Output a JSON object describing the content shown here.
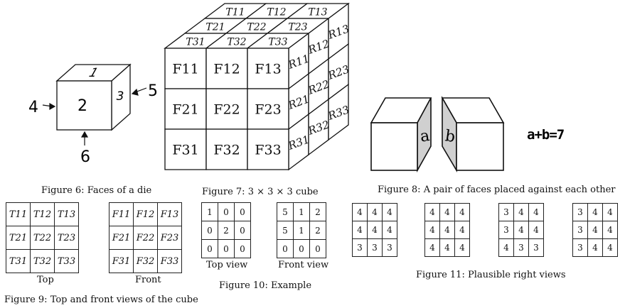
{
  "die": {
    "top": "1",
    "front": "2",
    "right": "3",
    "left_arrow": "4",
    "right_arrow": "5",
    "bottom_arrow": "6"
  },
  "cube": {
    "front_labels": [
      "F11",
      "F12",
      "F13",
      "F21",
      "F22",
      "F23",
      "F31",
      "F32",
      "F33"
    ],
    "top_labels": [
      "T11",
      "T12",
      "T13",
      "T21",
      "T22",
      "T23",
      "T31",
      "T32",
      "T33"
    ],
    "right_labels": [
      "R11",
      "R12",
      "R13",
      "R21",
      "R22",
      "R23",
      "R31",
      "R32",
      "R33"
    ]
  },
  "pair": {
    "face_a": "a",
    "face_b": "b",
    "equation": "a+b=7"
  },
  "captions": {
    "fig6": "Figure 6: Faces of a die",
    "fig7": "Figure 7: 3 × 3 × 3 cube",
    "fig8": "Figure 8: A pair of faces placed against each other",
    "fig9": "Figure 9: Top and front views of the cube",
    "fig10": "Figure 10: Example",
    "fig11": "Figure 11: Plausible right views"
  },
  "fig9": {
    "top_grid": [
      [
        "T11",
        "T12",
        "T13"
      ],
      [
        "T21",
        "T22",
        "T23"
      ],
      [
        "T31",
        "T32",
        "T33"
      ]
    ],
    "front_grid": [
      [
        "F11",
        "F12",
        "F13"
      ],
      [
        "F21",
        "F22",
        "F23"
      ],
      [
        "F31",
        "F32",
        "F33"
      ]
    ],
    "top_label": "Top",
    "front_label": "Front"
  },
  "fig10": {
    "top_view": [
      [
        "1",
        "0",
        "0"
      ],
      [
        "0",
        "2",
        "0"
      ],
      [
        "0",
        "0",
        "0"
      ]
    ],
    "front_view": [
      [
        "5",
        "1",
        "2"
      ],
      [
        "5",
        "1",
        "2"
      ],
      [
        "0",
        "0",
        "0"
      ]
    ],
    "top_label": "Top view",
    "front_label": "Front view"
  },
  "fig11": {
    "views": [
      [
        [
          "4",
          "4",
          "4"
        ],
        [
          "4",
          "4",
          "4"
        ],
        [
          "3",
          "3",
          "3"
        ]
      ],
      [
        [
          "4",
          "4",
          "4"
        ],
        [
          "4",
          "4",
          "4"
        ],
        [
          "4",
          "4",
          "4"
        ]
      ],
      [
        [
          "3",
          "4",
          "4"
        ],
        [
          "3",
          "4",
          "4"
        ],
        [
          "4",
          "3",
          "3"
        ]
      ],
      [
        [
          "3",
          "4",
          "4"
        ],
        [
          "3",
          "4",
          "4"
        ],
        [
          "3",
          "4",
          "4"
        ]
      ]
    ]
  }
}
